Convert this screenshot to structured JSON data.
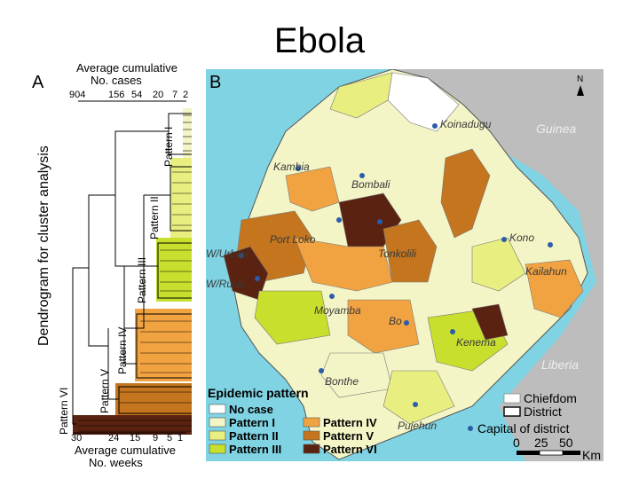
{
  "slide": {
    "title": "Ebola"
  },
  "panel_a": {
    "label": "A",
    "top_axis_title": [
      "Average cumulative",
      "No. cases"
    ],
    "top_ticks": [
      "904",
      "156",
      "54",
      "20",
      "7",
      "2"
    ],
    "y_axis_title": "Dendrogram for cluster analysis",
    "bottom_ticks": [
      "30",
      "24",
      "15",
      "9",
      "5",
      "1"
    ],
    "bottom_axis_title": [
      "Average cumulative",
      "No. weeks"
    ],
    "patterns": [
      "Pattern I",
      "Pattern II",
      "Pattern III",
      "Pattern IV",
      "Pattern V",
      "Pattern VI"
    ]
  },
  "panel_b": {
    "label": "B",
    "north": "N",
    "countries": [
      "Guinea",
      "Liberia"
    ],
    "districts": [
      "Koinadugu",
      "Kambia",
      "Bombali",
      "Port Loko",
      "Tonkolili",
      "Kono",
      "Kailahun",
      "W/Urban",
      "W/Rural",
      "Moyamba",
      "Bo",
      "Kenema",
      "Bonthe",
      "Pujehun"
    ],
    "legend": {
      "title": "Epidemic pattern",
      "items": [
        {
          "label": "No case",
          "color": "#ffffff"
        },
        {
          "label": "Pattern I",
          "color": "#f4f5c6"
        },
        {
          "label": "Pattern II",
          "color": "#e9ee80"
        },
        {
          "label": "Pattern III",
          "color": "#c8df2e"
        },
        {
          "label": "Pattern IV",
          "color": "#f2a341"
        },
        {
          "label": "Pattern V",
          "color": "#c4751e"
        },
        {
          "label": "Pattern VI",
          "color": "#5a2210"
        }
      ],
      "boundaries": [
        "Chiefdom",
        "District"
      ],
      "capital": "Capital of district",
      "scale_labels": [
        "0",
        "25",
        "50"
      ],
      "scale_unit": "Km"
    }
  },
  "colors": {
    "sea": "#7fd3e3",
    "land_grey": "#bdbdbd",
    "capital_dot": "#2a5caa"
  }
}
